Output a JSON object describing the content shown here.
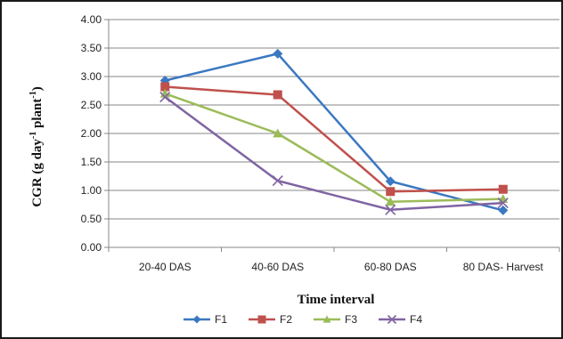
{
  "chart_data": {
    "type": "line",
    "title": "",
    "xlabel": "Time interval",
    "ylabel": "CGR (g day-1 plant-1)",
    "ylabel_parts": {
      "main": "CGR (g day",
      "sup1": "-1",
      "mid": " plant",
      "sup2": "-1",
      "end": ")"
    },
    "categories": [
      "20-40 DAS",
      "40-60 DAS",
      "60-80 DAS",
      "80 DAS- Harvest"
    ],
    "ylim": [
      0,
      4
    ],
    "yticks": [
      "0.00",
      "0.50",
      "1.00",
      "1.50",
      "2.00",
      "2.50",
      "3.00",
      "3.50",
      "4.00"
    ],
    "grid": true,
    "legend_position": "bottom",
    "series": [
      {
        "name": "F1",
        "values": [
          2.93,
          3.4,
          1.16,
          0.65
        ],
        "color": "#3b78c2",
        "marker": "diamond"
      },
      {
        "name": "F2",
        "values": [
          2.82,
          2.68,
          0.98,
          1.02
        ],
        "color": "#c0504d",
        "marker": "square"
      },
      {
        "name": "F3",
        "values": [
          2.7,
          2.0,
          0.8,
          0.85
        ],
        "color": "#9bbb59",
        "marker": "triangle"
      },
      {
        "name": "F4",
        "values": [
          2.64,
          1.17,
          0.66,
          0.78
        ],
        "color": "#8064a2",
        "marker": "x"
      }
    ]
  }
}
